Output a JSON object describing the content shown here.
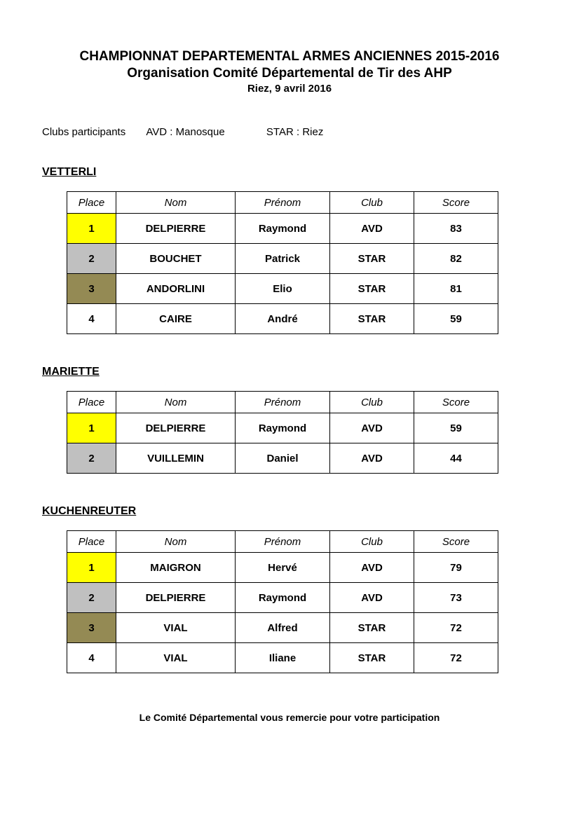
{
  "header": {
    "line1": "CHAMPIONNAT DEPARTEMENTAL ARMES ANCIENNES 2015-2016",
    "line2": "Organisation Comité Départemental de Tir des AHP",
    "line3": "Riez, 9 avril 2016"
  },
  "clubs": {
    "label": "Clubs participants",
    "entries": [
      {
        "code": "AVD",
        "sep": " :  ",
        "name": "Manosque"
      },
      {
        "code": "STAR",
        "sep": " :  ",
        "name": "Riez"
      }
    ]
  },
  "columns": {
    "place": "Place",
    "nom": "Nom",
    "prenom": "Prénom",
    "club": "Club",
    "score": "Score"
  },
  "place_colors": {
    "1": "#ffff00",
    "2": "#c0c0c0",
    "3": "#948a54",
    "default": "#ffffff"
  },
  "sections": [
    {
      "title": "VETTERLI",
      "rows": [
        {
          "place": "1",
          "nom": "DELPIERRE",
          "prenom": "Raymond",
          "club": "AVD",
          "score": "83"
        },
        {
          "place": "2",
          "nom": "BOUCHET",
          "prenom": "Patrick",
          "club": "STAR",
          "score": "82"
        },
        {
          "place": "3",
          "nom": "ANDORLINI",
          "prenom": "Elio",
          "club": "STAR",
          "score": "81"
        },
        {
          "place": "4",
          "nom": "CAIRE",
          "prenom": "André",
          "club": "STAR",
          "score": "59"
        }
      ]
    },
    {
      "title": "MARIETTE",
      "rows": [
        {
          "place": "1",
          "nom": "DELPIERRE",
          "prenom": "Raymond",
          "club": "AVD",
          "score": "59"
        },
        {
          "place": "2",
          "nom": "VUILLEMIN",
          "prenom": "Daniel",
          "club": "AVD",
          "score": "44"
        }
      ]
    },
    {
      "title": "KUCHENREUTER",
      "rows": [
        {
          "place": "1",
          "nom": "MAIGRON",
          "prenom": "Hervé",
          "club": "AVD",
          "score": "79"
        },
        {
          "place": "2",
          "nom": "DELPIERRE",
          "prenom": "Raymond",
          "club": "AVD",
          "score": "73"
        },
        {
          "place": "3",
          "nom": "VIAL",
          "prenom": "Alfred",
          "club": "STAR",
          "score": "72"
        },
        {
          "place": "4",
          "nom": "VIAL",
          "prenom": "Iliane",
          "club": "STAR",
          "score": "72"
        }
      ]
    }
  ],
  "footer": "Le Comité Départemental vous remercie pour votre participation"
}
